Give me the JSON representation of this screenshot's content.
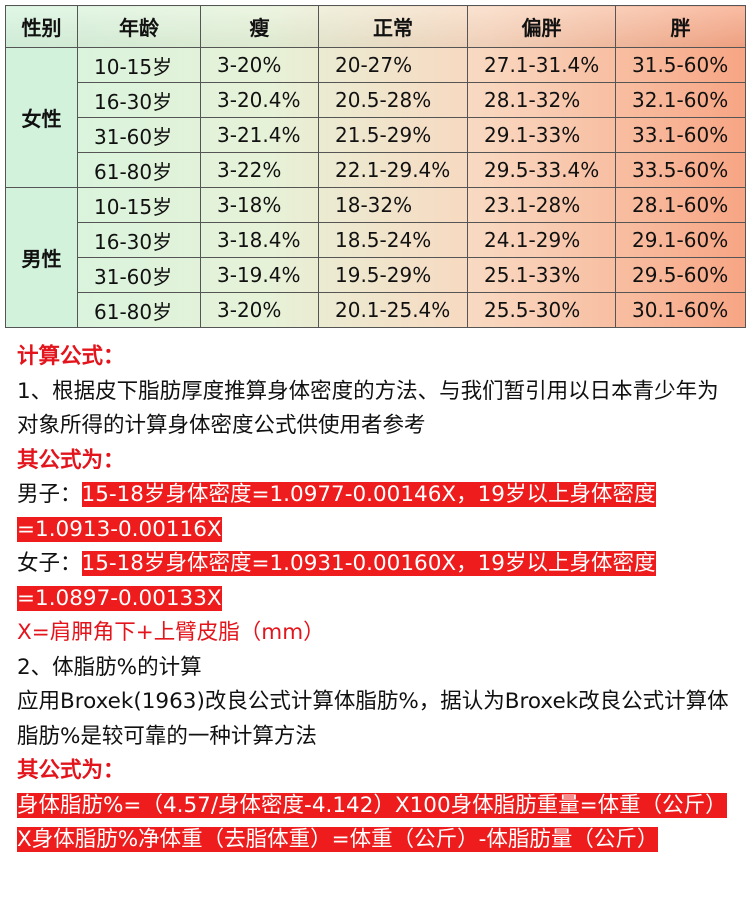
{
  "table": {
    "header": [
      "性别",
      "年龄",
      "瘦",
      "正常",
      "偏胖",
      "胖"
    ],
    "groups": [
      {
        "label": "女性",
        "rows": [
          [
            "10-15岁",
            "3-20%",
            "20-27%",
            "27.1-31.4%",
            "31.5-60%"
          ],
          [
            "16-30岁",
            "3-20.4%",
            "20.5-28%",
            "28.1-32%",
            "32.1-60%"
          ],
          [
            "31-60岁",
            "3-21.4%",
            "21.5-29%",
            "29.1-33%",
            "33.1-60%"
          ],
          [
            "61-80岁",
            "3-22%",
            "22.1-29.4%",
            "29.5-33.4%",
            "33.5-60%"
          ]
        ]
      },
      {
        "label": "男性",
        "rows": [
          [
            "10-15岁",
            "3-18%",
            "18-32%",
            "23.1-28%",
            "28.1-60%"
          ],
          [
            "16-30岁",
            "3-18.4%",
            "18.5-24%",
            "24.1-29%",
            "29.1-60%"
          ],
          [
            "31-60岁",
            "3-19.4%",
            "19.5-29%",
            "25.1-33%",
            "29.5-60%"
          ],
          [
            "61-80岁",
            "3-20%",
            "20.1-25.4%",
            "25.5-30%",
            "30.1-60%"
          ]
        ]
      }
    ]
  },
  "formula": {
    "heading1": "计算公式：",
    "item1": "1、根据皮下脂肪厚度推算身体密度的方法、与我们暂引用以日本青少年为对象所得的计算身体密度公式供使用者参考",
    "heading2": "其公式为：",
    "male_label": "男子：",
    "male_formula": "15-18岁身体密度=1.0977-0.00146X，19岁以上身体密度=1.0913-0.00116X",
    "female_label": "女子：",
    "female_formula": "15-18岁身体密度=1.0931-0.00160X，19岁以上身体密度=1.0897-0.00133X",
    "x_note": "X=肩胛角下+上臂皮脂（mm）",
    "item2": "2、体脂肪%的计算",
    "item2_text": "应用Broxek(1963)改良公式计算体脂肪%，据认为Broxek改良公式计算体脂肪%是较可靠的一种计算方法",
    "heading3": "其公式为：",
    "body_fat_formula": "身体脂肪%=（4.57/身体密度-4.142）X100身体脂肪重量=体重（公斤）X身体脂肪%净体重（去脂体重）=体重（公斤）-体脂肪量（公斤）"
  }
}
